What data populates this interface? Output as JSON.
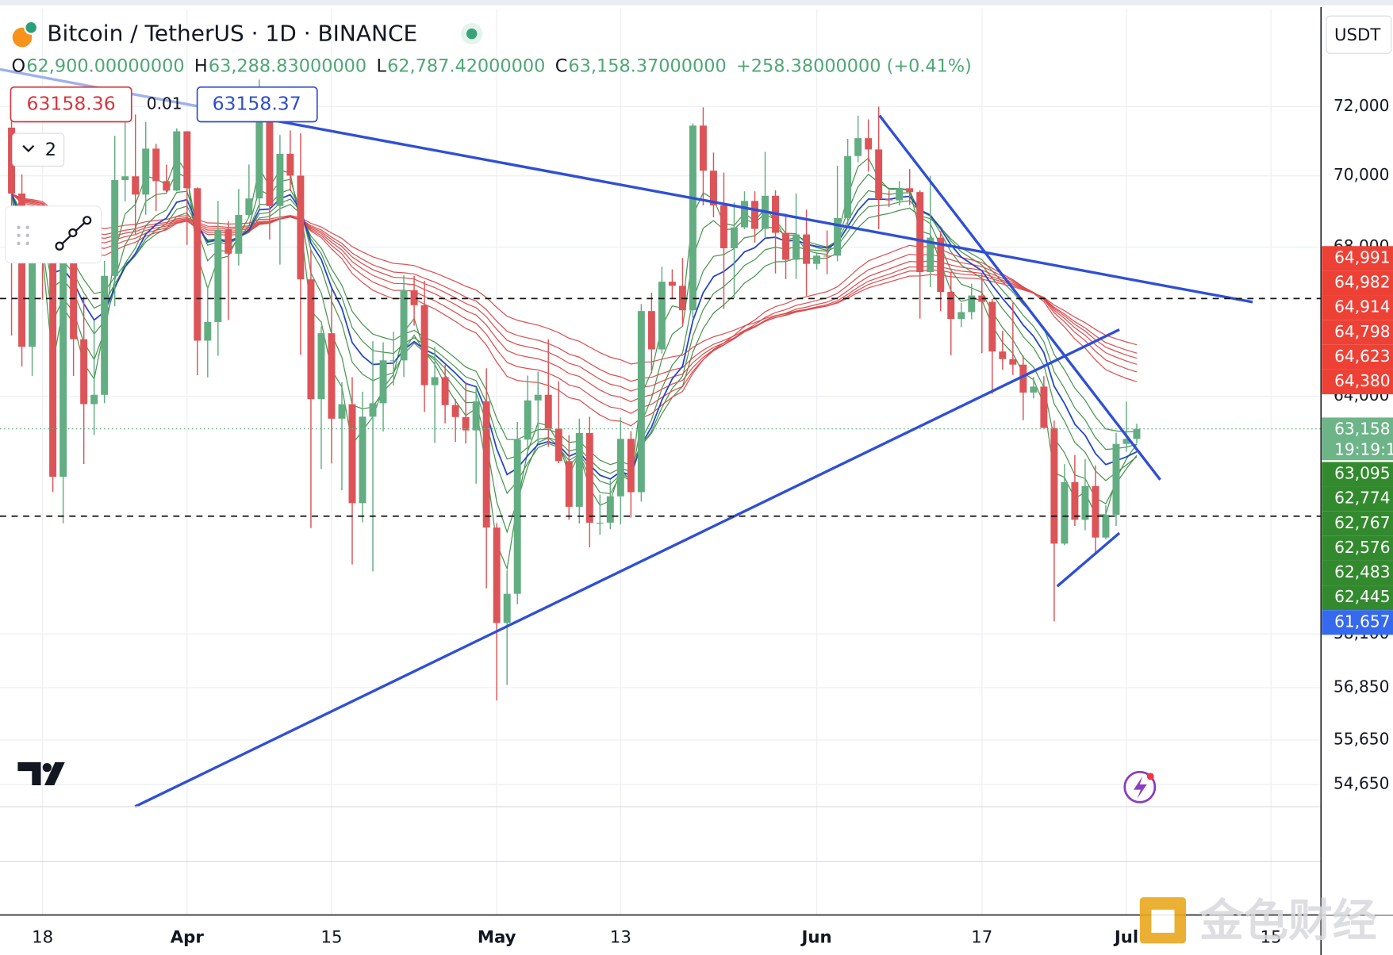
{
  "chart_data": {
    "type": "candlestick",
    "title": "Bitcoin / TetherUS · 1D · BINANCE",
    "quote_currency": "USDT",
    "legend_ohlc": [
      {
        "key": "O",
        "value": "62,900.00000000"
      },
      {
        "key": "H",
        "value": "63,288.83000000"
      },
      {
        "key": "L",
        "value": "62,787.42000000"
      },
      {
        "key": "C",
        "value": "63,158.37000000"
      }
    ],
    "legend_change": "+258.38000000 (+0.41%)",
    "sell_price": "63158.36",
    "spread": "0.01",
    "buy_price": "63158.37",
    "indicator_count": "2",
    "watermark": "金色财经",
    "log_scale": true,
    "grid": true,
    "up_color": "#63ad82",
    "down_color": "#dc5458",
    "ylim": [
      54164,
      74917
    ],
    "yticks": [
      {
        "value": 72000,
        "label": "72,000"
      },
      {
        "value": 70000,
        "label": "70,000"
      },
      {
        "value": 68000,
        "label": "68,000"
      },
      {
        "value": 64000,
        "label": "64,000"
      },
      {
        "value": 58100,
        "label": "58,100"
      },
      {
        "value": 56850,
        "label": "56,850"
      },
      {
        "value": 55650,
        "label": "55,650"
      },
      {
        "value": 54650,
        "label": "54,650"
      }
    ],
    "categories": [
      null,
      null,
      null,
      "18",
      null,
      null,
      null,
      null,
      null,
      null,
      null,
      null,
      null,
      null,
      null,
      null,
      null,
      "Apr",
      null,
      null,
      null,
      null,
      null,
      null,
      null,
      null,
      null,
      null,
      null,
      null,
      null,
      "15",
      null,
      null,
      null,
      null,
      null,
      null,
      null,
      null,
      null,
      null,
      null,
      null,
      null,
      null,
      null,
      "May",
      null,
      null,
      null,
      null,
      null,
      null,
      null,
      null,
      null,
      null,
      null,
      "13",
      null,
      null,
      null,
      null,
      null,
      null,
      null,
      null,
      null,
      null,
      null,
      null,
      null,
      null,
      null,
      null,
      null,
      null,
      "Jun",
      null,
      null,
      null,
      null,
      null,
      null,
      null,
      null,
      null,
      null,
      null,
      null,
      null,
      null,
      null,
      "17",
      null,
      null,
      null,
      null,
      null,
      null,
      null,
      null,
      null,
      null,
      null,
      null,
      null,
      "Jul",
      null,
      null,
      null,
      null,
      null,
      null,
      null,
      null,
      null,
      null,
      null,
      null,
      null,
      "15"
    ],
    "ohlc": [
      [
        71387,
        72419,
        65600,
        69499
      ],
      [
        69499,
        70043,
        64780,
        65300
      ],
      [
        65300,
        68904,
        64533,
        68393
      ],
      [
        68390,
        68956,
        66565,
        67609
      ],
      [
        67609,
        68124,
        61555,
        61937
      ],
      [
        61937,
        68100,
        60775,
        67840
      ],
      [
        67840,
        68240,
        64529,
        65501
      ],
      [
        65501,
        66649,
        62260,
        63796
      ],
      [
        63796,
        65999,
        63000,
        64037
      ],
      [
        64037,
        67622,
        63820,
        67211
      ],
      [
        67210,
        71150,
        66385,
        69880
      ],
      [
        69880,
        71561,
        69280,
        69988
      ],
      [
        69988,
        71769,
        68359,
        69469
      ],
      [
        69469,
        71552,
        68903,
        70780
      ],
      [
        70780,
        70916,
        69009,
        69850
      ],
      [
        69850,
        70321,
        69540,
        69582
      ],
      [
        69582,
        71366,
        69562,
        71280
      ],
      [
        71280,
        71288,
        68062,
        69649
      ],
      [
        69649,
        69674,
        64550,
        65463
      ],
      [
        65463,
        66903,
        64493,
        65963
      ],
      [
        65963,
        69291,
        65064,
        68487
      ],
      [
        68487,
        68725,
        66011,
        67820
      ],
      [
        67820,
        69629,
        67491,
        68896
      ],
      [
        68896,
        70326,
        68824,
        69360
      ],
      [
        69360,
        72797,
        69043,
        71620
      ],
      [
        71620,
        71758,
        68210,
        69146
      ],
      [
        69146,
        71172,
        67518,
        70631
      ],
      [
        70631,
        71305,
        69567,
        70006
      ],
      [
        70006,
        71227,
        65086,
        67116
      ],
      [
        67116,
        67932,
        60660,
        63924
      ],
      [
        63924,
        65840,
        62134,
        65661
      ],
      [
        65661,
        66867,
        62274,
        63419
      ],
      [
        63419,
        64365,
        61600,
        63793
      ],
      [
        63793,
        64499,
        59768,
        61277
      ],
      [
        61277,
        64117,
        60803,
        63470
      ],
      [
        63470,
        65450,
        59600,
        63818
      ],
      [
        63818,
        65419,
        63090,
        64941
      ],
      [
        64941,
        65700,
        64278,
        64941
      ],
      [
        64941,
        67233,
        64500,
        66819
      ],
      [
        66819,
        67208,
        65864,
        66414
      ],
      [
        66414,
        67075,
        63589,
        64289
      ],
      [
        64289,
        65297,
        62794,
        64498
      ],
      [
        64498,
        64820,
        63297,
        63770
      ],
      [
        63770,
        63923,
        62824,
        63461
      ],
      [
        63461,
        64370,
        62781,
        63118
      ],
      [
        63118,
        64228,
        61765,
        63866
      ],
      [
        63866,
        64734,
        59191,
        60672
      ],
      [
        60672,
        60780,
        56552,
        58364
      ],
      [
        58364,
        59625,
        56911,
        59060
      ],
      [
        59060,
        63333,
        58811,
        62882
      ],
      [
        62882,
        64540,
        62541,
        63892
      ],
      [
        63892,
        64646,
        62822,
        64038
      ],
      [
        64038,
        65500,
        62700,
        63162
      ],
      [
        63162,
        64390,
        62280,
        62334
      ],
      [
        62334,
        62995,
        60866,
        61187
      ],
      [
        61187,
        63421,
        60769,
        63049
      ],
      [
        63049,
        63469,
        60187,
        60792
      ],
      [
        60792,
        61490,
        60492,
        60793
      ],
      [
        60793,
        61850,
        60631,
        61448
      ],
      [
        61448,
        63450,
        60750,
        62901
      ],
      [
        62901,
        63099,
        60919,
        61552
      ],
      [
        61552,
        66444,
        61316,
        66256
      ],
      [
        66256,
        66753,
        64602,
        65231
      ],
      [
        65231,
        67459,
        65119,
        67051
      ],
      [
        67051,
        67387,
        66600,
        66940
      ],
      [
        66940,
        67700,
        65857,
        66278
      ],
      [
        66278,
        71515,
        66060,
        71446
      ],
      [
        71446,
        71979,
        69162,
        70148
      ],
      [
        70148,
        70666,
        68832,
        69166
      ],
      [
        69166,
        70096,
        66312,
        67969
      ],
      [
        67969,
        69250,
        66600,
        68549
      ],
      [
        68549,
        69562,
        68500,
        69290
      ],
      [
        69290,
        69562,
        68128,
        68507
      ],
      [
        68507,
        70687,
        68250,
        69436
      ],
      [
        69436,
        69591,
        67277,
        68398
      ],
      [
        68398,
        68935,
        67124,
        67652
      ],
      [
        67652,
        69500,
        67128,
        68352
      ],
      [
        68352,
        69044,
        66670,
        67540
      ],
      [
        67540,
        67857,
        67386,
        67766
      ],
      [
        67766,
        68460,
        67257,
        67765
      ],
      [
        67765,
        70288,
        67612,
        68809
      ],
      [
        68809,
        71063,
        68567,
        70567
      ],
      [
        70567,
        71735,
        70390,
        71082
      ],
      [
        71082,
        71625,
        70119,
        70757
      ],
      [
        70757,
        71997,
        68500,
        69342
      ],
      [
        69342,
        69582,
        69118,
        69305
      ],
      [
        69305,
        69850,
        69160,
        69648
      ],
      [
        69648,
        70195,
        69172,
        69540
      ],
      [
        69540,
        69590,
        66051,
        67314
      ],
      [
        67314,
        69999,
        66900,
        68263
      ],
      [
        68263,
        68449,
        66251,
        66773
      ],
      [
        66773,
        67320,
        65078,
        66043
      ],
      [
        66043,
        66478,
        65823,
        66228
      ],
      [
        66228,
        66998,
        66034,
        66676
      ],
      [
        66676,
        67298,
        65130,
        66504
      ],
      [
        66504,
        66588,
        64060,
        65175
      ],
      [
        65175,
        65727,
        64693,
        64974
      ],
      [
        64974,
        66482,
        64559,
        64828
      ],
      [
        64828,
        65066,
        63379,
        64096
      ],
      [
        64096,
        64500,
        63943,
        64252
      ],
      [
        64252,
        64524,
        63178,
        63180
      ],
      [
        63180,
        63369,
        58402,
        60277
      ],
      [
        60277,
        62258,
        60239,
        61806
      ],
      [
        61806,
        62487,
        60712,
        60864
      ],
      [
        60864,
        62389,
        60606,
        61706
      ],
      [
        61706,
        62225,
        60063,
        60427
      ],
      [
        60427,
        61224,
        60383,
        60986
      ],
      [
        60986,
        63058,
        60712,
        62772
      ],
      [
        62772,
        63861,
        62571,
        62900
      ],
      [
        62900,
        63288.83,
        62787.42,
        63158.37
      ],
      null,
      null,
      null,
      null,
      null,
      null,
      null,
      null,
      null,
      null,
      null,
      null,
      null
    ],
    "overlays": [
      {
        "kind": "ema",
        "periods": [
          3,
          5,
          8,
          10,
          12,
          15
        ],
        "color": "#3f8f47"
      },
      {
        "kind": "ema",
        "periods": [
          30,
          35,
          40,
          45,
          50,
          60
        ],
        "color": "#d9484a"
      },
      {
        "kind": "ema",
        "periods": [
          10
        ],
        "color": "#2140cf"
      }
    ],
    "price_tags": [
      {
        "label": "64,991",
        "color": "#ee4136"
      },
      {
        "label": "64,982",
        "color": "#ee4136"
      },
      {
        "label": "64,914",
        "color": "#ee4136"
      },
      {
        "label": "64,798",
        "color": "#ee4136"
      },
      {
        "label": "64,623",
        "color": "#ee4136"
      },
      {
        "label": "64,380",
        "color": "#ee4136"
      },
      {
        "label": "63,158",
        "sublabel": "19:19:1",
        "color": "#6db489"
      },
      {
        "label": "63,095",
        "color": "#338a2e"
      },
      {
        "label": "62,774",
        "color": "#338a2e"
      },
      {
        "label": "62,767",
        "color": "#338a2e"
      },
      {
        "label": "62,576",
        "color": "#338a2e"
      },
      {
        "label": "62,483",
        "color": "#338a2e"
      },
      {
        "label": "62,445",
        "color": "#338a2e"
      },
      {
        "label": "61,657",
        "color": "#3569ee"
      }
    ]
  }
}
